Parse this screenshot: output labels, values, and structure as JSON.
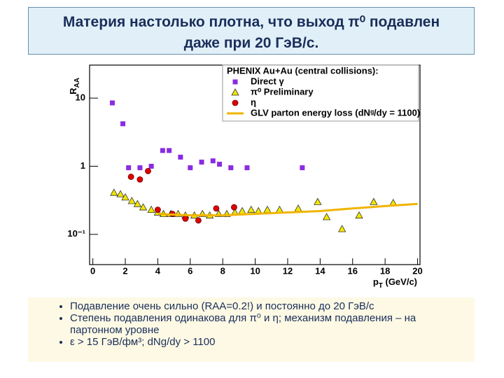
{
  "slide": {
    "title": [
      "Материя настолько плотна, что выход π⁰ подавлен",
      "даже при 20 ГэВ/с."
    ],
    "bullets": [
      "Подавление очень сильно (RAA=0.2!) и постоянно до 20 ГэВ/с",
      "Степень подавления одинакова для π⁰ и η; механизм подавления – на партонном уровне",
      "ε > 15 ГэВ/фм³; dNg/dy > 1100"
    ]
  },
  "chart_data": {
    "type": "scatter",
    "log_y": true,
    "legend_title": "PHENIX Au+Au (central collisions):",
    "legend_position": "upper right",
    "ylabel": {
      "main": "R",
      "sub": "AA"
    },
    "xlabel": {
      "main": "p",
      "sub": "T",
      "rest": " (GeV/c)"
    },
    "xlim": [
      -0.2,
      20.15
    ],
    "xticks": [
      0,
      2,
      4,
      6,
      8,
      10,
      12,
      14,
      16,
      18,
      20
    ],
    "ylim": [
      0.036,
      30.5
    ],
    "yticks": [
      {
        "value": 0.1,
        "label": "10⁻¹"
      },
      1,
      10
    ],
    "series": [
      {
        "name": "Direct γ",
        "marker": "square",
        "color": "#8a2be2",
        "x": [
          1.2,
          1.85,
          2.2,
          2.9,
          3.6,
          4.3,
          4.7,
          5.4,
          6.0,
          6.7,
          7.4,
          7.8,
          8.5,
          9.5,
          12.9
        ],
        "values": [
          8.5,
          4.2,
          0.95,
          0.95,
          1.0,
          1.7,
          1.7,
          1.36,
          0.95,
          1.15,
          1.2,
          1.07,
          0.95,
          0.95,
          0.95
        ]
      },
      {
        "name": "π⁰ Preliminary",
        "marker": "triangle",
        "color": "#f2e600",
        "x": [
          1.3,
          1.7,
          2.0,
          2.4,
          2.75,
          3.1,
          3.6,
          4.0,
          4.35,
          4.8,
          5.25,
          5.7,
          6.25,
          6.75,
          7.2,
          7.75,
          8.25,
          8.75,
          9.2,
          9.75,
          10.2,
          10.75,
          11.5,
          12.65,
          13.85,
          14.4,
          15.35,
          16.4,
          17.3,
          18.5
        ],
        "values": [
          0.41,
          0.39,
          0.35,
          0.31,
          0.28,
          0.25,
          0.23,
          0.21,
          0.2,
          0.2,
          0.2,
          0.19,
          0.19,
          0.2,
          0.19,
          0.2,
          0.2,
          0.21,
          0.22,
          0.23,
          0.22,
          0.23,
          0.23,
          0.24,
          0.3,
          0.18,
          0.12,
          0.19,
          0.3,
          0.29
        ]
      },
      {
        "name": "η",
        "marker": "circle",
        "color": "#e00000",
        "x": [
          2.35,
          2.9,
          3.4,
          4.0,
          4.9,
          5.7,
          6.5,
          7.6,
          8.7
        ],
        "values": [
          0.7,
          0.64,
          0.85,
          0.23,
          0.2,
          0.17,
          0.16,
          0.24,
          0.25
        ]
      },
      {
        "name": "GLV parton energy loss (dNᵍ/dy = 1100)",
        "marker": "line",
        "color": "#f0b400",
        "x": [
          4,
          6,
          8,
          10,
          12,
          14,
          16,
          18,
          20
        ],
        "values": [
          0.2,
          0.19,
          0.19,
          0.2,
          0.21,
          0.22,
          0.24,
          0.26,
          0.28
        ]
      }
    ]
  }
}
